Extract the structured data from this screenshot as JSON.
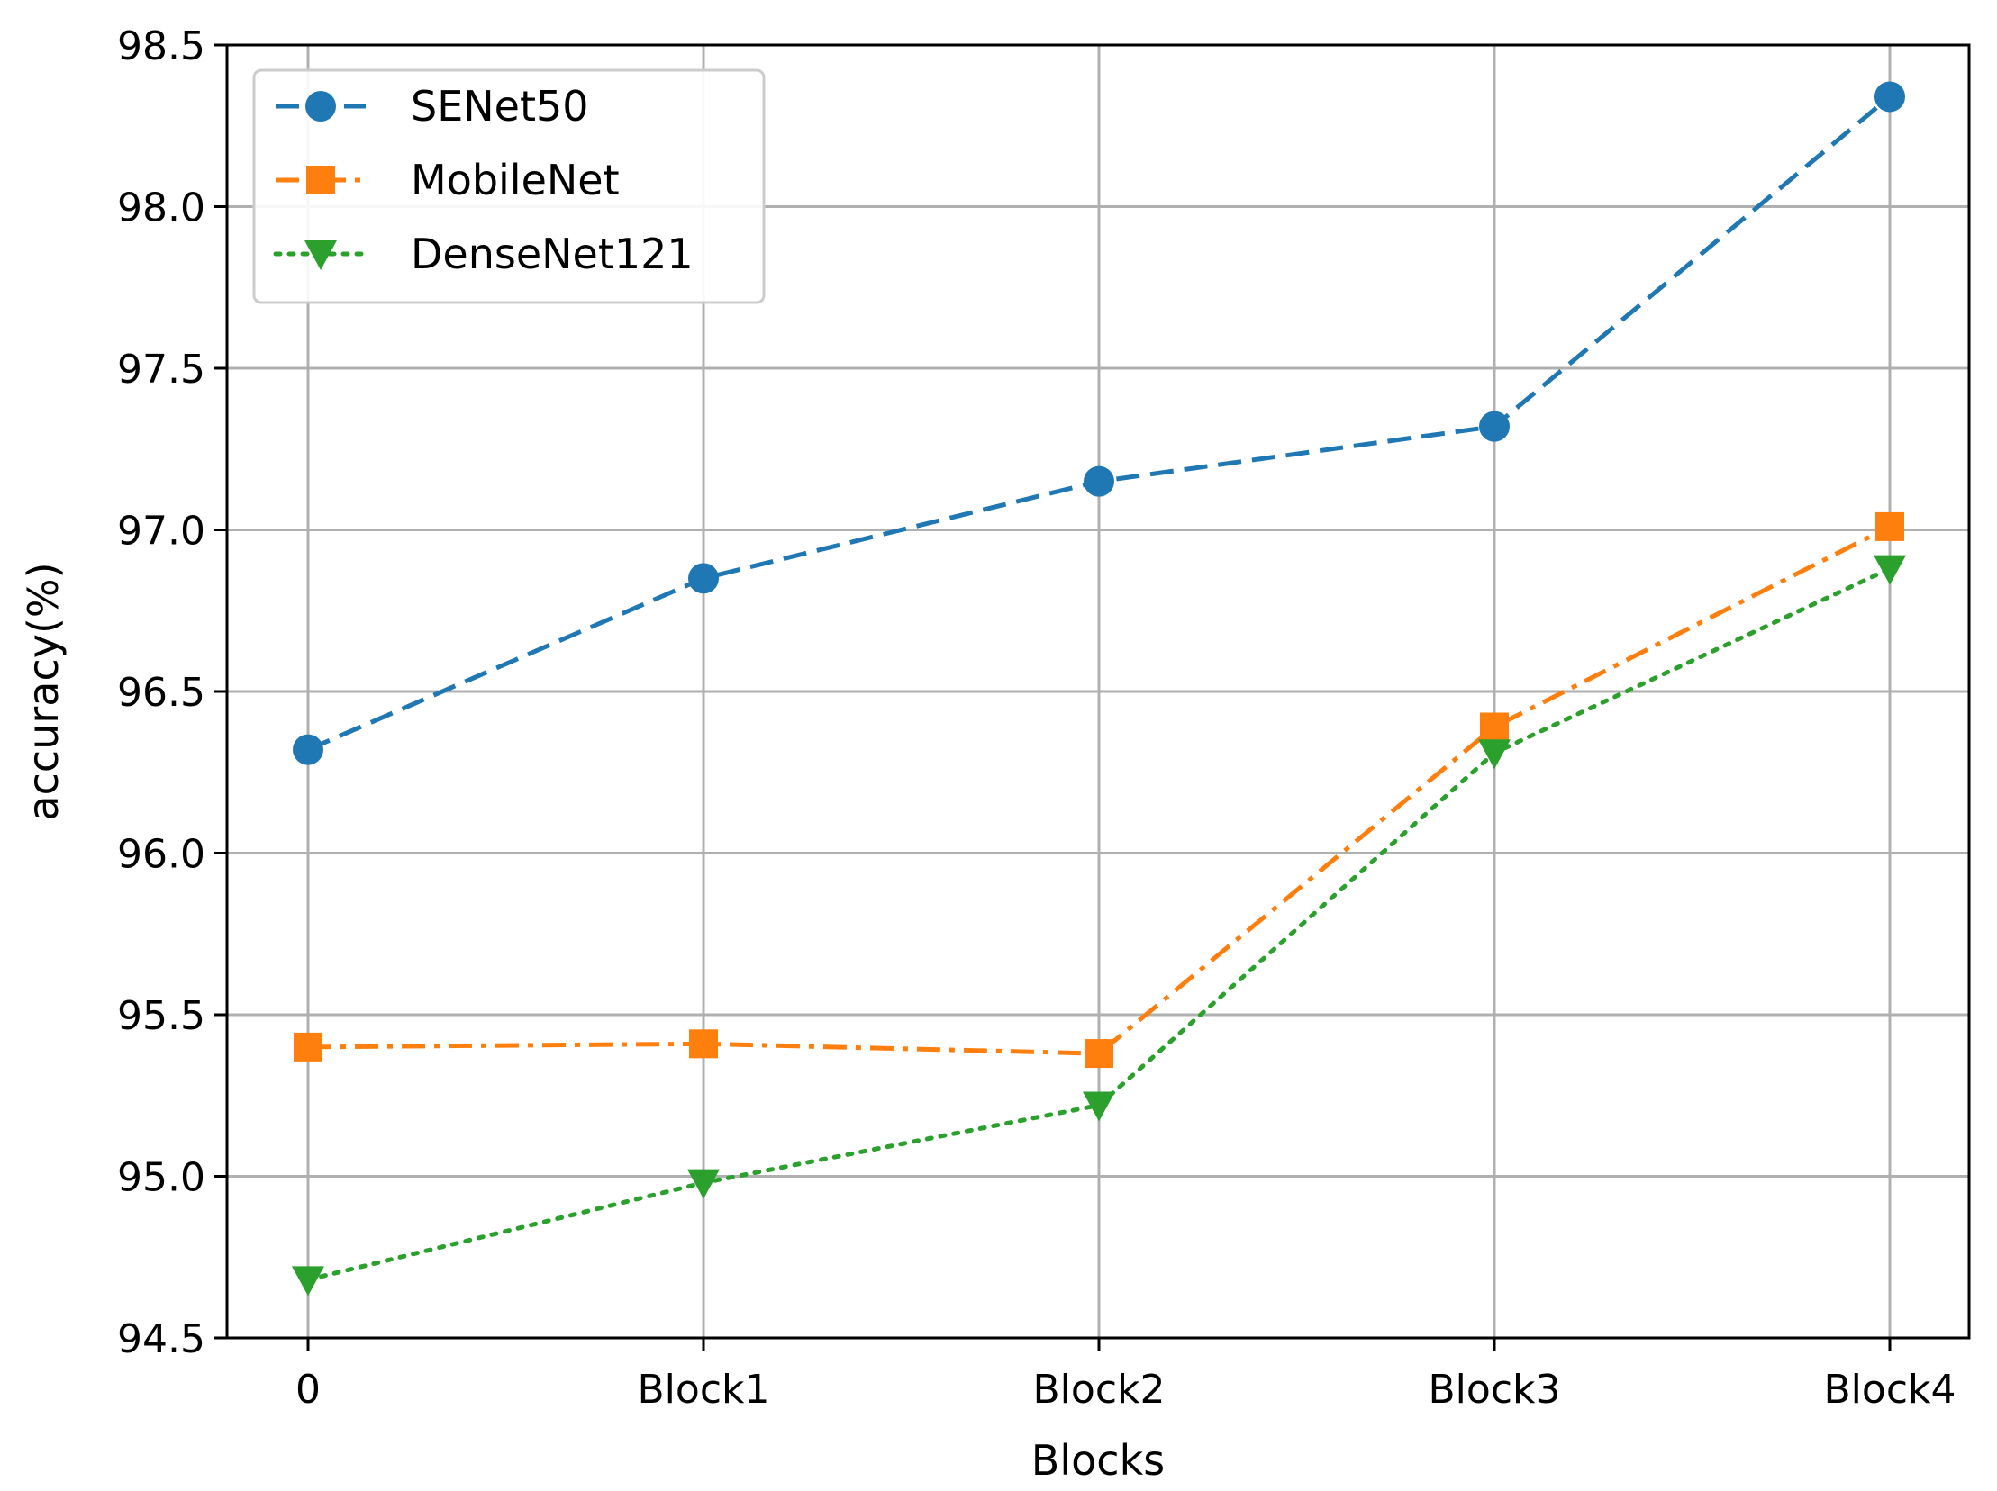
{
  "chart_data": {
    "type": "line",
    "title": "",
    "xlabel": "Blocks",
    "ylabel": "accuracy(%)",
    "categories": [
      "0",
      "Block1",
      "Block2",
      "Block3",
      "Block4"
    ],
    "ylim": [
      94.5,
      98.5
    ],
    "yticks": [
      "94.5",
      "95.0",
      "95.5",
      "96.0",
      "96.5",
      "97.0",
      "97.5",
      "98.0",
      "98.5"
    ],
    "grid": true,
    "legend_position": "top-left",
    "series": [
      {
        "name": "SENet50",
        "color": "#1f77b4",
        "marker": "circle",
        "linestyle": "dashed",
        "values": [
          96.32,
          96.85,
          97.15,
          97.32,
          98.34
        ]
      },
      {
        "name": "MobileNet",
        "color": "#ff7f0e",
        "marker": "square",
        "linestyle": "dashdot",
        "values": [
          95.4,
          95.41,
          95.38,
          96.39,
          97.01
        ]
      },
      {
        "name": "DenseNet121",
        "color": "#2ca02c",
        "marker": "triangle-down",
        "linestyle": "dotted",
        "values": [
          94.68,
          94.98,
          95.22,
          96.31,
          96.88
        ]
      }
    ]
  }
}
